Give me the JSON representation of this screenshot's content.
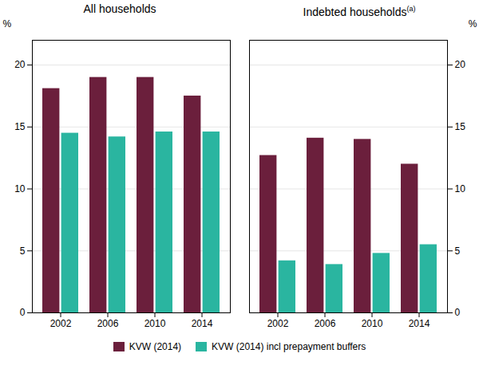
{
  "chart_data": [
    {
      "type": "bar",
      "title": "All households",
      "categories": [
        "2002",
        "2006",
        "2010",
        "2014"
      ],
      "series": [
        {
          "name": "KVW (2014)",
          "color": "#6b1f3c",
          "values": [
            18.1,
            19.0,
            19.0,
            17.5
          ]
        },
        {
          "name": "KVW (2014) incl prepayment buffers",
          "color": "#2ab5a0",
          "values": [
            14.5,
            14.2,
            14.6,
            14.6
          ]
        }
      ],
      "ylabel": "%",
      "ylim": [
        0,
        22
      ],
      "yticks": [
        0,
        5,
        10,
        15,
        20
      ],
      "grid": true,
      "legend": "bottom"
    },
    {
      "type": "bar",
      "title": "Indebted households",
      "annotations": [
        "(a)"
      ],
      "categories": [
        "2002",
        "2006",
        "2010",
        "2014"
      ],
      "series": [
        {
          "name": "KVW (2014)",
          "color": "#6b1f3c",
          "values": [
            12.7,
            14.1,
            14.0,
            12.0
          ]
        },
        {
          "name": "KVW (2014) incl prepayment buffers",
          "color": "#2ab5a0",
          "values": [
            4.2,
            3.9,
            4.8,
            5.5
          ]
        }
      ],
      "ylabel": "%",
      "ylim": [
        0,
        22
      ],
      "yticks": [
        0,
        5,
        10,
        15,
        20
      ],
      "grid": true,
      "legend": "bottom"
    }
  ]
}
